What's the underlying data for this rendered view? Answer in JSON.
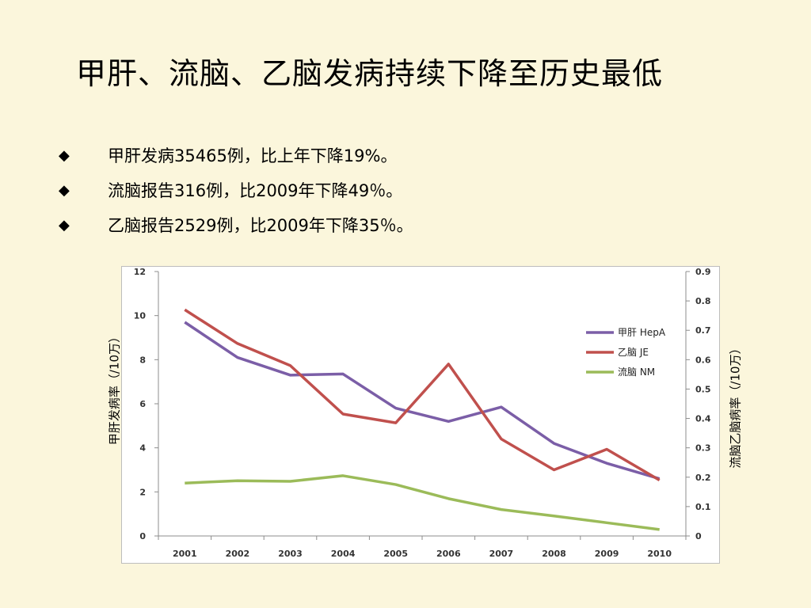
{
  "slide": {
    "title": "甲肝、流脑、乙脑发病持续下降至历史最低"
  },
  "bullets": [
    {
      "mark": "◆",
      "text": "甲肝发病35465例，比上年下降19%。"
    },
    {
      "mark": "◆",
      "text": "流脑报告316例，比2009年下降49％。"
    },
    {
      "mark": "◆",
      "text": "乙脑报告2529例，比2009年下降35％。"
    }
  ],
  "chart_data": {
    "type": "line",
    "x": [
      "2001",
      "2002",
      "2003",
      "2004",
      "2005",
      "2006",
      "2007",
      "2008",
      "2009",
      "2010"
    ],
    "ylabel_left": "甲肝发病率（/10万）",
    "ylabel_right": "流脑乙脑病率（/10万）",
    "ylim_left": [
      0,
      12
    ],
    "ylim_right": [
      0,
      0.9
    ],
    "yticks_left": [
      "0",
      "2",
      "4",
      "6",
      "8",
      "10",
      "12"
    ],
    "yticks_right": [
      "0",
      "0.1",
      "0.2",
      "0.3",
      "0.4",
      "0.5",
      "0.6",
      "0.7",
      "0.8",
      "0.9"
    ],
    "legend_position": "right-upper",
    "grid": false,
    "series": [
      {
        "name": "甲肝 HepA",
        "axis": "left",
        "color": "#7b5ea7",
        "values": [
          9.7,
          8.1,
          7.3,
          7.35,
          5.8,
          5.2,
          5.85,
          4.2,
          3.3,
          2.6
        ]
      },
      {
        "name": "乙脑 JE",
        "axis": "right",
        "color": "#c0504d",
        "values": [
          0.77,
          0.655,
          0.58,
          0.415,
          0.385,
          0.585,
          0.33,
          0.225,
          0.295,
          0.19
        ]
      },
      {
        "name": "流脑 NM",
        "axis": "right",
        "color": "#9bbb59",
        "values": [
          0.18,
          0.188,
          0.186,
          0.205,
          0.175,
          0.127,
          0.09,
          0.068,
          0.045,
          0.022
        ]
      }
    ]
  }
}
